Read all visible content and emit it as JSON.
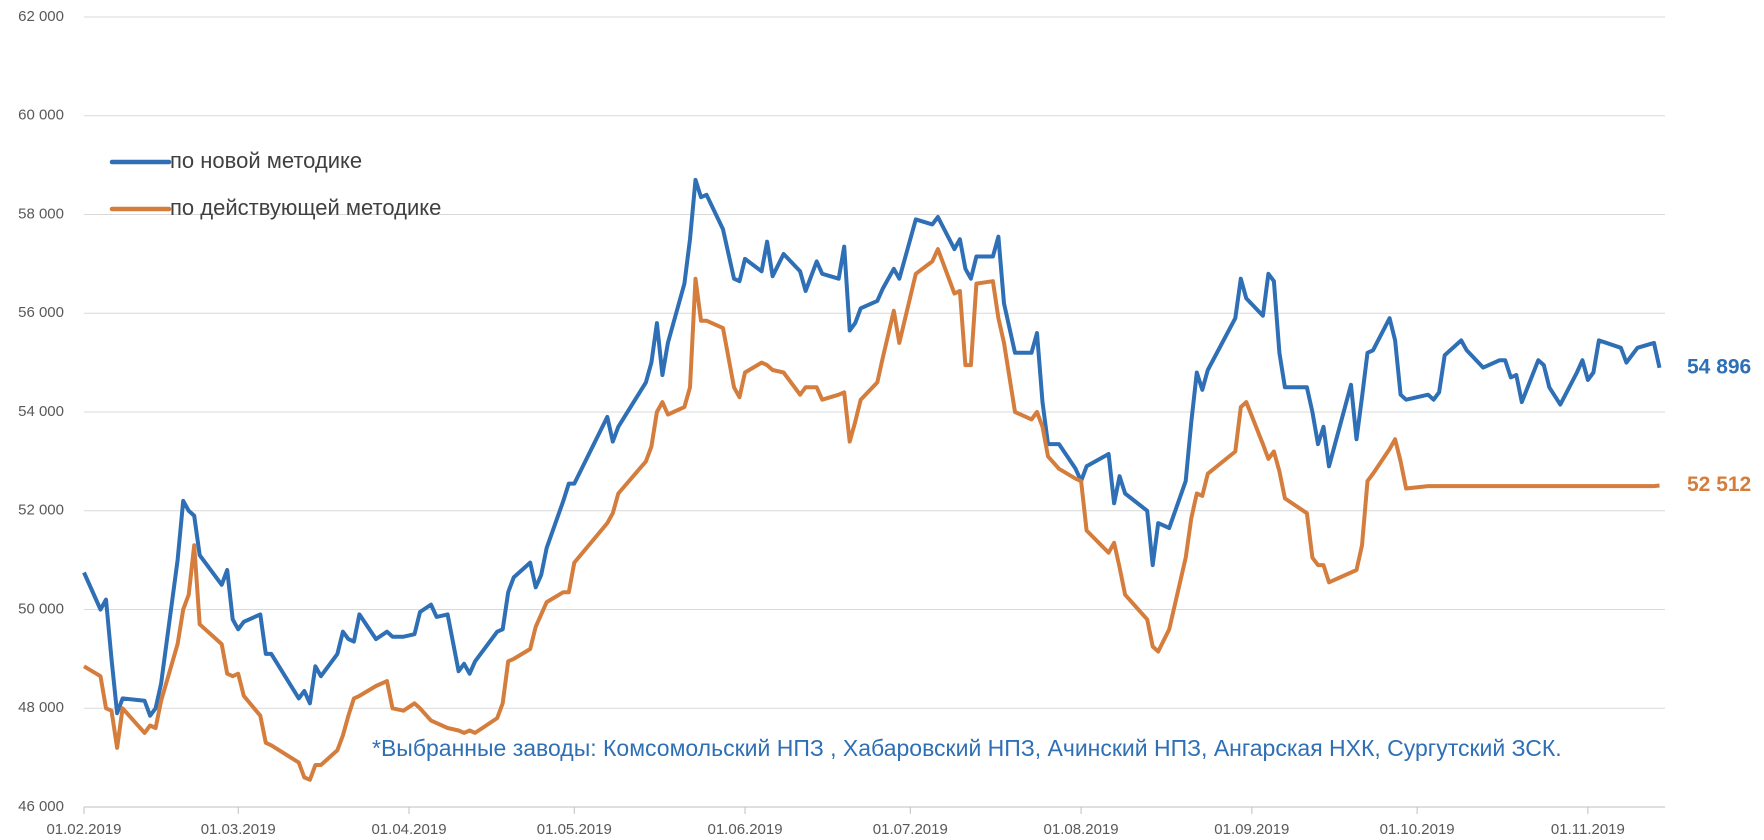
{
  "chart_data": {
    "type": "line",
    "legend": "upper left",
    "grid": true,
    "note": "*Выбранные заводы: Комсомольский НПЗ , Хабаровский НПЗ, Ачинский НПЗ, Ангарская НХК, Сургутский ЗСК.",
    "xlim": [
      "2019-02-01",
      "2019-11-15"
    ],
    "xticks": [
      {
        "value": "2019-02-01",
        "label": "01.02.2019"
      },
      {
        "value": "2019-03-01",
        "label": "01.03.2019"
      },
      {
        "value": "2019-04-01",
        "label": "01.04.2019"
      },
      {
        "value": "2019-05-01",
        "label": "01.05.2019"
      },
      {
        "value": "2019-06-01",
        "label": "01.06.2019"
      },
      {
        "value": "2019-07-01",
        "label": "01.07.2019"
      },
      {
        "value": "2019-08-01",
        "label": "01.08.2019"
      },
      {
        "value": "2019-09-01",
        "label": "01.09.2019"
      },
      {
        "value": "2019-10-01",
        "label": "01.10.2019"
      },
      {
        "value": "2019-11-01",
        "label": "01.11.2019"
      }
    ],
    "ylim": [
      46000,
      62000
    ],
    "yticks": [
      {
        "value": 46000,
        "label": "46 000"
      },
      {
        "value": 48000,
        "label": "48 000"
      },
      {
        "value": 50000,
        "label": "50 000"
      },
      {
        "value": 52000,
        "label": "52 000"
      },
      {
        "value": 54000,
        "label": "54 000"
      },
      {
        "value": 56000,
        "label": "56 000"
      },
      {
        "value": 58000,
        "label": "58 000"
      },
      {
        "value": 60000,
        "label": "60 000"
      },
      {
        "value": 62000,
        "label": "62 000"
      }
    ],
    "x": [
      "2019-02-01",
      "2019-02-04",
      "2019-02-05",
      "2019-02-06",
      "2019-02-07",
      "2019-02-08",
      "2019-02-12",
      "2019-02-13",
      "2019-02-14",
      "2019-02-15",
      "2019-02-18",
      "2019-02-19",
      "2019-02-20",
      "2019-02-21",
      "2019-02-22",
      "2019-02-26",
      "2019-02-27",
      "2019-02-28",
      "2019-03-01",
      "2019-03-02",
      "2019-03-05",
      "2019-03-06",
      "2019-03-07",
      "2019-03-12",
      "2019-03-13",
      "2019-03-14",
      "2019-03-15",
      "2019-03-16",
      "2019-03-19",
      "2019-03-20",
      "2019-03-21",
      "2019-03-22",
      "2019-03-23",
      "2019-03-26",
      "2019-03-28",
      "2019-03-29",
      "2019-03-31",
      "2019-04-02",
      "2019-04-03",
      "2019-04-05",
      "2019-04-06",
      "2019-04-08",
      "2019-04-10",
      "2019-04-11",
      "2019-04-12",
      "2019-04-13",
      "2019-04-17",
      "2019-04-18",
      "2019-04-19",
      "2019-04-20",
      "2019-04-23",
      "2019-04-24",
      "2019-04-25",
      "2019-04-26",
      "2019-04-29",
      "2019-04-30",
      "2019-05-01",
      "2019-05-07",
      "2019-05-08",
      "2019-05-09",
      "2019-05-14",
      "2019-05-15",
      "2019-05-16",
      "2019-05-17",
      "2019-05-18",
      "2019-05-21",
      "2019-05-22",
      "2019-05-23",
      "2019-05-24",
      "2019-05-25",
      "2019-05-28",
      "2019-05-30",
      "2019-05-31",
      "2019-06-01",
      "2019-06-04",
      "2019-06-05",
      "2019-06-06",
      "2019-06-08",
      "2019-06-11",
      "2019-06-12",
      "2019-06-14",
      "2019-06-15",
      "2019-06-18",
      "2019-06-19",
      "2019-06-20",
      "2019-06-21",
      "2019-06-22",
      "2019-06-25",
      "2019-06-26",
      "2019-06-28",
      "2019-06-29",
      "2019-07-02",
      "2019-07-05",
      "2019-07-06",
      "2019-07-09",
      "2019-07-10",
      "2019-07-11",
      "2019-07-12",
      "2019-07-13",
      "2019-07-16",
      "2019-07-17",
      "2019-07-18",
      "2019-07-20",
      "2019-07-23",
      "2019-07-24",
      "2019-07-25",
      "2019-07-26",
      "2019-07-28",
      "2019-07-31",
      "2019-08-01",
      "2019-08-02",
      "2019-08-06",
      "2019-08-07",
      "2019-08-08",
      "2019-08-09",
      "2019-08-13",
      "2019-08-14",
      "2019-08-15",
      "2019-08-17",
      "2019-08-20",
      "2019-08-21",
      "2019-08-22",
      "2019-08-23",
      "2019-08-24",
      "2019-08-29",
      "2019-08-30",
      "2019-08-31",
      "2019-09-03",
      "2019-09-04",
      "2019-09-05",
      "2019-09-06",
      "2019-09-07",
      "2019-09-11",
      "2019-09-12",
      "2019-09-13",
      "2019-09-14",
      "2019-09-15",
      "2019-09-19",
      "2019-09-20",
      "2019-09-21",
      "2019-09-22",
      "2019-09-23",
      "2019-09-26",
      "2019-09-27",
      "2019-09-28",
      "2019-09-29",
      "2019-10-03",
      "2019-10-04",
      "2019-10-05",
      "2019-10-06",
      "2019-10-09",
      "2019-10-10",
      "2019-10-13",
      "2019-10-16",
      "2019-10-17",
      "2019-10-18",
      "2019-10-19",
      "2019-10-20",
      "2019-10-23",
      "2019-10-24",
      "2019-10-25",
      "2019-10-27",
      "2019-10-30",
      "2019-10-31",
      "2019-11-01",
      "2019-11-02",
      "2019-11-03",
      "2019-11-07",
      "2019-11-08",
      "2019-11-10",
      "2019-11-13",
      "2019-11-14"
    ],
    "series": [
      {
        "name": "по новой методике",
        "color": "#2e6fb5",
        "end_label": "54 896",
        "values": [
          50750,
          50000,
          50200,
          49000,
          47900,
          48200,
          48150,
          47850,
          48000,
          48500,
          51000,
          52200,
          52000,
          51900,
          51100,
          50500,
          50800,
          49800,
          49600,
          49750,
          49900,
          49100,
          49100,
          48200,
          48350,
          48100,
          48850,
          48650,
          49100,
          49550,
          49400,
          49350,
          49900,
          49400,
          49550,
          49450,
          49450,
          49500,
          49950,
          50100,
          49850,
          49900,
          48750,
          48900,
          48700,
          48950,
          49550,
          49600,
          50350,
          50650,
          50950,
          50450,
          50700,
          51250,
          52200,
          52550,
          52550,
          53900,
          53400,
          53700,
          54600,
          55000,
          55800,
          54750,
          55400,
          56600,
          57500,
          58700,
          58350,
          58400,
          57700,
          56700,
          56650,
          57100,
          56850,
          57450,
          56750,
          57200,
          56850,
          56450,
          57050,
          56800,
          56700,
          57350,
          55650,
          55800,
          56100,
          56250,
          56500,
          56900,
          56700,
          57900,
          57800,
          57950,
          57300,
          57500,
          56900,
          56700,
          57150,
          57150,
          57550,
          56200,
          55200,
          55200,
          55600,
          54200,
          53350,
          53350,
          52850,
          52600,
          52900,
          53150,
          52150,
          52700,
          52350,
          52000,
          50900,
          51750,
          51650,
          52600,
          53800,
          54800,
          54450,
          54850,
          55900,
          56700,
          56300,
          55950,
          56800,
          56650,
          55200,
          54500,
          54500,
          54000,
          53350,
          53700,
          52900,
          54550,
          53450,
          54300,
          55200,
          55250,
          55900,
          55450,
          54350,
          54250,
          54350,
          54250,
          54400,
          55150,
          55450,
          55250,
          54900,
          55050,
          55050,
          54700,
          54750,
          54200,
          55050,
          54950,
          54500,
          54150,
          54800,
          55050,
          54650,
          54800,
          55450,
          55300,
          55000,
          55300,
          55400,
          54896
        ]
      },
      {
        "name": "по действующей методике",
        "color": "#d47d3c",
        "end_label": "52 512",
        "values": [
          48850,
          48650,
          48000,
          47950,
          47200,
          48000,
          47500,
          47650,
          47600,
          48150,
          49300,
          50000,
          50300,
          51300,
          49700,
          49300,
          48700,
          48650,
          48700,
          48250,
          47850,
          47300,
          47250,
          46900,
          46600,
          46550,
          46850,
          46850,
          47150,
          47450,
          47850,
          48200,
          48250,
          48450,
          48550,
          48000,
          47950,
          48100,
          48000,
          47750,
          47700,
          47600,
          47550,
          47500,
          47550,
          47500,
          47800,
          48100,
          48950,
          49000,
          49200,
          49650,
          49900,
          50150,
          50350,
          50350,
          50950,
          51750,
          51950,
          52350,
          53000,
          53300,
          54000,
          54200,
          53950,
          54100,
          54500,
          56700,
          55850,
          55850,
          55700,
          54500,
          54300,
          54800,
          55000,
          54950,
          54850,
          54800,
          54350,
          54500,
          54500,
          54250,
          54350,
          54400,
          53400,
          53800,
          54250,
          54600,
          55100,
          56050,
          55400,
          56800,
          57050,
          57300,
          56400,
          56450,
          54950,
          54950,
          56600,
          56650,
          55900,
          55400,
          54000,
          53850,
          54000,
          53700,
          53100,
          52850,
          52650,
          52600,
          51600,
          51150,
          51350,
          50850,
          50300,
          49800,
          49250,
          49150,
          49600,
          51050,
          51850,
          52350,
          52300,
          52750,
          53200,
          54100,
          54200,
          53350,
          53050,
          53200,
          52800,
          52250,
          51950,
          51050,
          50900,
          50900,
          50550,
          50750,
          50800,
          51300,
          52600,
          52750,
          53250,
          53450,
          53000,
          52450,
          52500,
          52500,
          52500,
          52500,
          52500,
          52500,
          52500,
          52500,
          52500,
          52500,
          52500,
          52500,
          52500,
          52500,
          52500,
          52500,
          52500,
          52500,
          52500,
          52500,
          52500,
          52500,
          52500,
          52500,
          52500,
          52512
        ]
      }
    ]
  }
}
